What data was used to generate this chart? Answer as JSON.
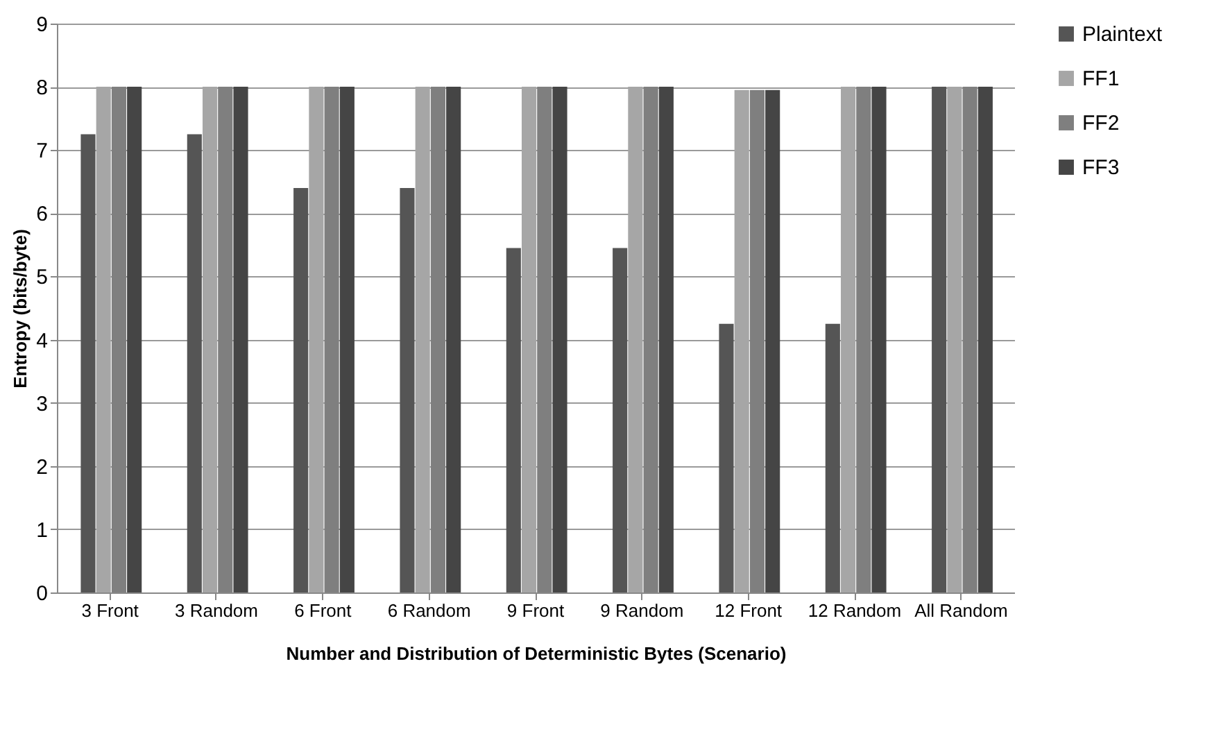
{
  "chart_data": {
    "type": "bar",
    "xlabel": "Number and Distribution of Deterministic Bytes (Scenario)",
    "ylabel": "Entropy (bits/byte)",
    "categories": [
      "3 Front",
      "3 Random",
      "6 Front",
      "6 Random",
      "9 Front",
      "9 Random",
      "12 Front",
      "12 Random",
      "All Random"
    ],
    "series": [
      {
        "name": "Plaintext",
        "color": "#555555",
        "values": [
          7.25,
          7.25,
          6.4,
          6.4,
          5.45,
          5.45,
          4.25,
          4.25,
          8
        ]
      },
      {
        "name": "FF1",
        "color": "#a6a6a6",
        "values": [
          8,
          8,
          8,
          8,
          8,
          8,
          7.95,
          8,
          8
        ]
      },
      {
        "name": "FF2",
        "color": "#7f7f7f",
        "values": [
          8,
          8,
          8,
          8,
          8,
          8,
          7.95,
          8,
          8
        ]
      },
      {
        "name": "FF3",
        "color": "#454545",
        "values": [
          8,
          8,
          8,
          8,
          8,
          8,
          7.95,
          8,
          8
        ]
      }
    ],
    "ylim": [
      0,
      9
    ],
    "yticks": [
      0,
      1,
      2,
      3,
      4,
      5,
      6,
      7,
      8,
      9
    ],
    "grid": "y",
    "legend": "right"
  }
}
